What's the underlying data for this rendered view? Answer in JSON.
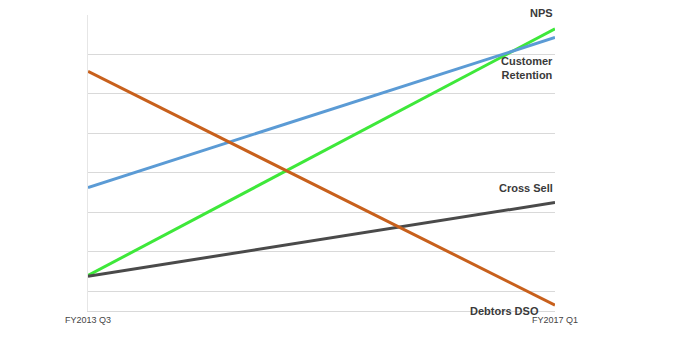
{
  "chart_data": {
    "type": "line",
    "categories": [
      "FY2013 Q3",
      "FY2017 Q1"
    ],
    "series": [
      {
        "name": "NPS",
        "color": "#3ee83a",
        "values": [
          0.4,
          6.65
        ]
      },
      {
        "name": "Customer Retention",
        "color": "#5b9bd5",
        "values": [
          2.63,
          6.43
        ]
      },
      {
        "name": "Cross Sell",
        "color": "#4a4a4a",
        "values": [
          0.38,
          2.25
        ]
      },
      {
        "name": "Debtors DSO",
        "color": "#c8601c",
        "values": [
          5.57,
          -0.35
        ]
      }
    ],
    "ylim": [
      -0.5,
      7
    ],
    "yticks": [
      0,
      1,
      2,
      3,
      4,
      5,
      6,
      7
    ],
    "grid": true,
    "tick_labels": "x"
  }
}
